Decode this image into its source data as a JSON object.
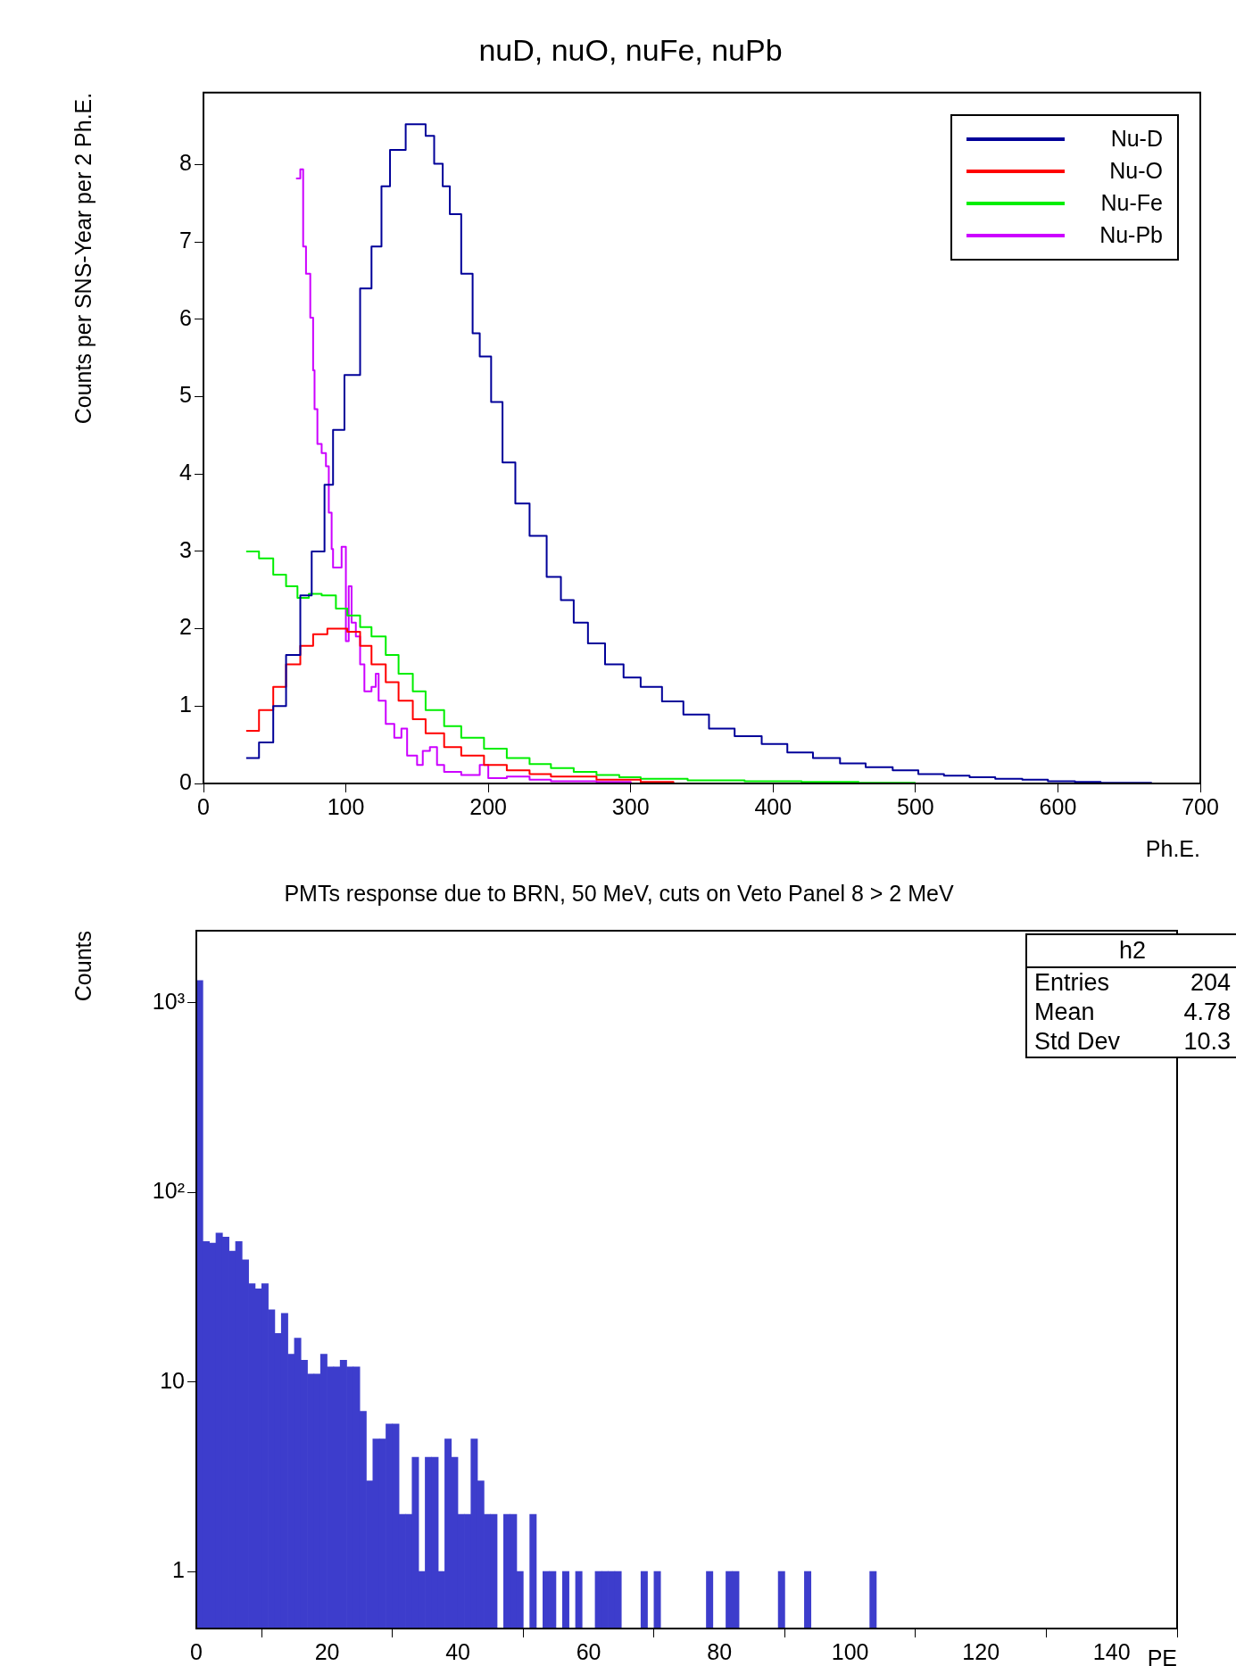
{
  "chart_data": [
    {
      "type": "step",
      "title": "nuD, nuO, nuFe, nuPb",
      "xlabel": "Ph.E.",
      "ylabel": "Counts per SNS-Year per 2 Ph.E.",
      "xlim": [
        0,
        700
      ],
      "ylim": [
        0,
        8.93
      ],
      "xticks": [
        0,
        100,
        200,
        300,
        400,
        500,
        600,
        700
      ],
      "yticks": [
        0,
        1,
        2,
        3,
        4,
        5,
        6,
        7,
        8
      ],
      "legend": "top right",
      "series": [
        {
          "name": "Nu-D",
          "color": "#000099",
          "x": [
            30,
            39,
            49,
            58,
            68,
            76,
            85,
            91,
            99,
            110,
            118,
            125,
            131,
            142,
            148,
            156,
            162,
            168,
            173,
            181,
            189,
            194,
            202,
            210,
            219,
            229,
            241,
            251,
            260,
            270,
            282,
            295,
            307,
            322,
            337,
            355,
            373,
            392,
            410,
            428,
            447,
            465,
            484,
            502,
            520,
            538,
            556,
            575,
            593,
            612,
            630,
            666
          ],
          "values": [
            0.33,
            0.53,
            1.0,
            1.66,
            2.43,
            3.0,
            3.86,
            4.57,
            5.28,
            6.4,
            6.94,
            7.72,
            8.19,
            8.52,
            8.52,
            8.37,
            8.01,
            7.72,
            7.36,
            6.59,
            5.82,
            5.52,
            4.93,
            4.15,
            3.62,
            3.2,
            2.67,
            2.37,
            2.08,
            1.81,
            1.54,
            1.37,
            1.25,
            1.06,
            0.89,
            0.71,
            0.61,
            0.51,
            0.4,
            0.33,
            0.26,
            0.21,
            0.17,
            0.12,
            0.1,
            0.08,
            0.06,
            0.05,
            0.03,
            0.02,
            0.01,
            0.01
          ]
        },
        {
          "name": "Nu-O",
          "color": "#ff0000",
          "x": [
            30,
            39,
            49,
            58,
            68,
            77,
            87,
            93,
            101,
            110,
            118,
            128,
            137,
            147,
            156,
            169,
            181,
            197,
            213,
            229,
            244,
            276,
            307,
            330
          ],
          "values": [
            0.68,
            0.95,
            1.25,
            1.54,
            1.78,
            1.93,
            2.0,
            2.0,
            1.96,
            1.78,
            1.54,
            1.31,
            1.07,
            0.83,
            0.65,
            0.47,
            0.36,
            0.24,
            0.17,
            0.12,
            0.09,
            0.05,
            0.02,
            0.01
          ]
        },
        {
          "name": "Nu-Fe",
          "color": "#00ee00",
          "x": [
            30,
            39,
            49,
            58,
            66,
            74,
            83,
            93,
            101,
            110,
            118,
            128,
            137,
            147,
            156,
            169,
            181,
            197,
            213,
            229,
            244,
            260,
            276,
            292,
            307,
            340,
            380,
            420,
            460,
            500
          ],
          "values": [
            3.0,
            2.91,
            2.7,
            2.55,
            2.4,
            2.45,
            2.43,
            2.26,
            2.17,
            2.02,
            1.9,
            1.66,
            1.42,
            1.19,
            0.95,
            0.74,
            0.59,
            0.45,
            0.33,
            0.25,
            0.2,
            0.15,
            0.11,
            0.08,
            0.06,
            0.04,
            0.03,
            0.02,
            0.01,
            0.01
          ]
        },
        {
          "name": "Nu-Pb",
          "color": "#cc00ff",
          "x": [
            65,
            68,
            70,
            72,
            75,
            77,
            78,
            80,
            83,
            86,
            88,
            90,
            91,
            97,
            100,
            102,
            104,
            107,
            110,
            113,
            118,
            121,
            123,
            128,
            134,
            139,
            143,
            150,
            154,
            159,
            164,
            169,
            181,
            194,
            200,
            213,
            229,
            244,
            276,
            300
          ],
          "values": [
            7.82,
            7.94,
            6.94,
            6.59,
            6.02,
            5.34,
            4.84,
            4.39,
            4.27,
            4.1,
            3.5,
            3.03,
            2.79,
            3.06,
            1.84,
            2.55,
            2.08,
            1.9,
            1.54,
            1.19,
            1.25,
            1.42,
            1.07,
            0.77,
            0.59,
            0.71,
            0.36,
            0.24,
            0.42,
            0.47,
            0.24,
            0.15,
            0.11,
            0.24,
            0.07,
            0.09,
            0.05,
            0.03,
            0.02,
            0.01
          ]
        }
      ]
    },
    {
      "type": "histogram",
      "title": "PMTs response due to BRN, 50 MeV, cuts on Veto Panel 8 > 2 MeV",
      "xlabel": "PE",
      "ylabel": "Counts",
      "color": "#3d3dcc",
      "log": "y",
      "xlim": [
        0,
        150
      ],
      "ylim": [
        0.5,
        2400
      ],
      "xticks": [
        0,
        20,
        40,
        60,
        80,
        100,
        120,
        140
      ],
      "yticks": [
        1,
        10,
        {
          "value": 100,
          "label": "10²"
        },
        {
          "value": 1000,
          "label": "10³"
        }
      ],
      "annotations": [
        "h2",
        "Entries 204",
        "Mean 4.78",
        "Std Dev 10.3"
      ],
      "bins": [
        0,
        1,
        2,
        3,
        4,
        5,
        6,
        7,
        8,
        9,
        10,
        11,
        12,
        13,
        14,
        15,
        16,
        17,
        18,
        19,
        20,
        21,
        22,
        23,
        24,
        25,
        26,
        27,
        28,
        29,
        30,
        31,
        32,
        33,
        34,
        35,
        36,
        37,
        38,
        39,
        40,
        41,
        42,
        43,
        44,
        45,
        46,
        47,
        48,
        49,
        50,
        51,
        52,
        53,
        54,
        55,
        56,
        57,
        58,
        59,
        60,
        61,
        62,
        63,
        64,
        65,
        66,
        67,
        68,
        69,
        70,
        71,
        72,
        73,
        74,
        75,
        76,
        77,
        78,
        79,
        80,
        81,
        82,
        83,
        84,
        85,
        86,
        87,
        88,
        89,
        90,
        91,
        92,
        93,
        94,
        95,
        96,
        97,
        98,
        99,
        100,
        101,
        102,
        103,
        104,
        105,
        106,
        107,
        108,
        109,
        110,
        111,
        112,
        113,
        114,
        115,
        116,
        117,
        118,
        119,
        120,
        121,
        122,
        123,
        124,
        125,
        126,
        127,
        128,
        129,
        130,
        131,
        132,
        133,
        134,
        135,
        136,
        137,
        138,
        139,
        140,
        141,
        142,
        143,
        144,
        145,
        146,
        147,
        148,
        149,
        150
      ],
      "values": [
        1310,
        55,
        54,
        61,
        58,
        49,
        55,
        44,
        33,
        31,
        33,
        24,
        18,
        23,
        14,
        17,
        13,
        11,
        11,
        14,
        12,
        12,
        13,
        12,
        12,
        7,
        3,
        5,
        5,
        6,
        6,
        2,
        2,
        4,
        1,
        4,
        4,
        1,
        5,
        4,
        2,
        2,
        5,
        3,
        2,
        2,
        null,
        2,
        2,
        1,
        null,
        2,
        null,
        1,
        1,
        null,
        1,
        null,
        1,
        null,
        null,
        1,
        1,
        1,
        1,
        null,
        null,
        null,
        1,
        null,
        1,
        null,
        null,
        null,
        null,
        null,
        null,
        null,
        1,
        null,
        null,
        1,
        1,
        null,
        null,
        null,
        null,
        null,
        null,
        1,
        null,
        null,
        null,
        1,
        null,
        null,
        null,
        null,
        null,
        null,
        null,
        null,
        null,
        1,
        null,
        null,
        null,
        null,
        null,
        null,
        null,
        null,
        null,
        null,
        null,
        null,
        null,
        null,
        null,
        null,
        null,
        null,
        null,
        null,
        null,
        null,
        null,
        null,
        null,
        null,
        null,
        null,
        null,
        null,
        null,
        null,
        null,
        null,
        null,
        null,
        null,
        null,
        null,
        null,
        null,
        null,
        null,
        null,
        null,
        null
      ]
    }
  ]
}
